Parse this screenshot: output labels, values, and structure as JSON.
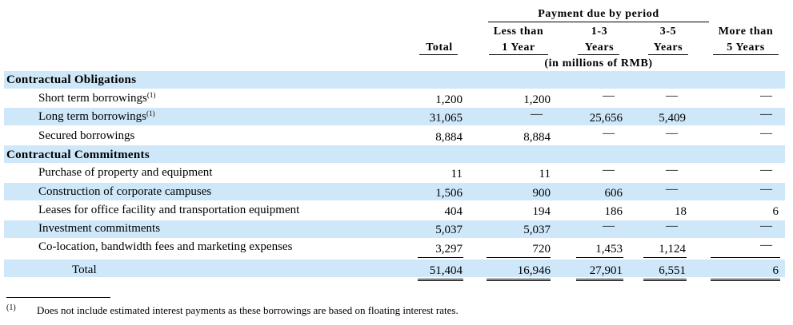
{
  "header": {
    "period_title": "Payment due by period",
    "unit_note": "(in millions of RMB)",
    "columns": [
      {
        "line1": "",
        "line2": "Total"
      },
      {
        "line1": "Less than",
        "line2": "1 Year"
      },
      {
        "line1": "1-3",
        "line2": "Years"
      },
      {
        "line1": "3-5",
        "line2": "Years"
      },
      {
        "line1": "More than",
        "line2": "5 Years"
      }
    ]
  },
  "sections": {
    "obligations_title": "Contractual Obligations",
    "commitments_title": "Contractual Commitments"
  },
  "rows": [
    {
      "label": "Short term borrowings",
      "note": "(1)",
      "values": [
        "1,200",
        "1,200",
        "—",
        "—",
        "—"
      ]
    },
    {
      "label": "Long term borrowings",
      "note": "(1)",
      "values": [
        "31,065",
        "—",
        "25,656",
        "5,409",
        "—"
      ]
    },
    {
      "label": "Secured borrowings",
      "note": "",
      "values": [
        "8,884",
        "8,884",
        "—",
        "—",
        "—"
      ]
    },
    {
      "label": "Purchase of property and equipment",
      "note": "",
      "values": [
        "11",
        "11",
        "—",
        "—",
        "—"
      ]
    },
    {
      "label": "Construction of corporate campuses",
      "note": "",
      "values": [
        "1,506",
        "900",
        "606",
        "—",
        "—"
      ]
    },
    {
      "label": "Leases for office facility and transportation equipment",
      "note": "",
      "values": [
        "404",
        "194",
        "186",
        "18",
        "6"
      ]
    },
    {
      "label": "Investment commitments",
      "note": "",
      "values": [
        "5,037",
        "5,037",
        "—",
        "—",
        "—"
      ]
    },
    {
      "label": "Co-location, bandwidth fees and marketing expenses",
      "note": "",
      "values": [
        "3,297",
        "720",
        "1,453",
        "1,124",
        "—"
      ]
    }
  ],
  "total": {
    "label": "Total",
    "values": [
      "51,404",
      "16,946",
      "27,901",
      "6,551",
      "6"
    ]
  },
  "footnote": {
    "mark": "(1)",
    "text": "Does not include estimated interest payments as these borrowings are based on floating interest rates."
  }
}
